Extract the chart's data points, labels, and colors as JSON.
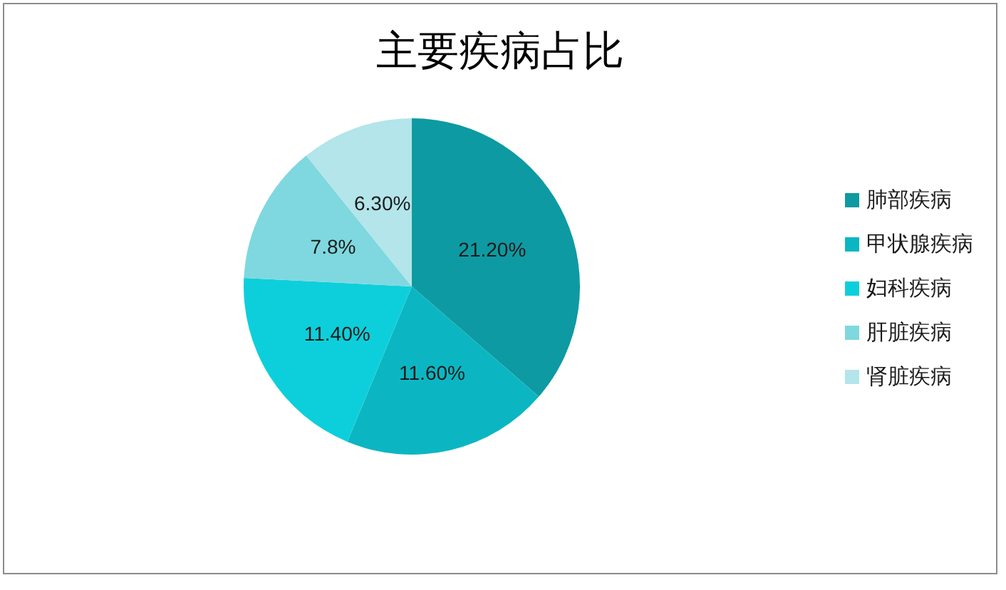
{
  "chart_data": {
    "type": "pie",
    "title": "主要疾病占比",
    "categories": [
      "肺部疾病",
      "甲状腺疾病",
      "妇科疾病",
      "肝脏疾病",
      "肾脏疾病"
    ],
    "values": [
      21.2,
      11.6,
      11.4,
      7.8,
      6.3
    ],
    "value_labels": [
      "21.20%",
      "11.60%",
      "11.40%",
      "7.8%",
      "6.30%"
    ],
    "colors": [
      "#0e9aa2",
      "#0bb6c2",
      "#0dcfdb",
      "#7fd8df",
      "#b3e5ea"
    ],
    "legend": "right"
  }
}
